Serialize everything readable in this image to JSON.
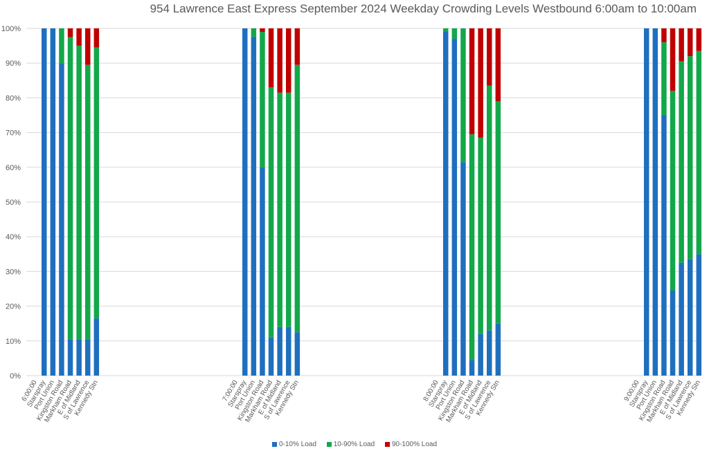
{
  "chart_data": {
    "type": "bar",
    "stacked": true,
    "title": "954 Lawrence East Express September 2024  Weekday Crowding Levels Westbound 6:00am to 10:00am",
    "xlabel": "",
    "ylabel": "",
    "ylim": [
      0,
      100
    ],
    "y_ticks": [
      "0%",
      "10%",
      "20%",
      "30%",
      "40%",
      "50%",
      "60%",
      "70%",
      "80%",
      "90%",
      "100%"
    ],
    "grid": true,
    "legend_position": "bottom",
    "groups": [
      {
        "label": "6:00:00",
        "categories": [
          "Starspray",
          "Port Union",
          "Kingston Road",
          "Markham Road",
          "E of Midland",
          "S of Lawrence",
          "Kennedy Stn"
        ],
        "series": [
          {
            "name": "0-10% Load",
            "values": [
              100,
              100,
              90,
              10.5,
              10.5,
              10.5,
              16.5
            ]
          },
          {
            "name": "10-90% Load",
            "values": [
              0,
              0,
              10,
              87,
              84.5,
              79,
              78
            ]
          },
          {
            "name": "90-100% Load",
            "values": [
              0,
              0,
              0,
              2.5,
              5,
              10.5,
              5.5
            ]
          }
        ]
      },
      {
        "label": "7:00:00",
        "categories": [
          "Starspray",
          "Port Union",
          "Kingston Road",
          "Markham Road",
          "E of Midland",
          "S of Lawrence",
          "Kennedy Stn"
        ],
        "series": [
          {
            "name": "0-10% Load",
            "values": [
              100,
              97.5,
              60,
              11,
              14,
              14,
              12.5
            ]
          },
          {
            "name": "10-90% Load",
            "values": [
              0,
              2.5,
              39,
              72,
              67.5,
              67.5,
              77
            ]
          },
          {
            "name": "90-100% Load",
            "values": [
              0,
              0,
              1,
              17,
              18.5,
              18.5,
              10.5
            ]
          }
        ]
      },
      {
        "label": "8:00:00",
        "categories": [
          "Starspray",
          "Port Union",
          "Kingston Road",
          "Markham Road",
          "E of Midland",
          "S of Lawrence",
          "Kennedy Stn"
        ],
        "series": [
          {
            "name": "0-10% Load",
            "values": [
              99,
              97,
              61.5,
              4.5,
              12,
              13,
              15
            ]
          },
          {
            "name": "10-90% Load",
            "values": [
              1,
              3,
              38.5,
              65,
              56.5,
              70.5,
              64
            ]
          },
          {
            "name": "90-100% Load",
            "values": [
              0,
              0,
              0,
              30.5,
              31.5,
              16.5,
              21
            ]
          }
        ]
      },
      {
        "label": "9:00:00",
        "categories": [
          "Starspray",
          "Port Union",
          "Kingston Road",
          "Markham Road",
          "E of Midland",
          "S of Lawrence",
          "Kennedy Stn"
        ],
        "series": [
          {
            "name": "0-10% Load",
            "values": [
              100,
              100,
              75,
              24.5,
              32.5,
              33.5,
              35
            ]
          },
          {
            "name": "10-90% Load",
            "values": [
              0,
              0,
              21,
              57.5,
              58,
              58.5,
              58.5
            ]
          },
          {
            "name": "90-100% Load",
            "values": [
              0,
              0,
              4,
              18,
              9.5,
              8,
              6.5
            ]
          }
        ]
      }
    ]
  },
  "colors": {
    "0-10% Load": "#1f6fbf",
    "10-90% Load": "#12a84a",
    "90-100% Load": "#c00000",
    "grid": "#d9d9d9",
    "text": "#595959"
  }
}
